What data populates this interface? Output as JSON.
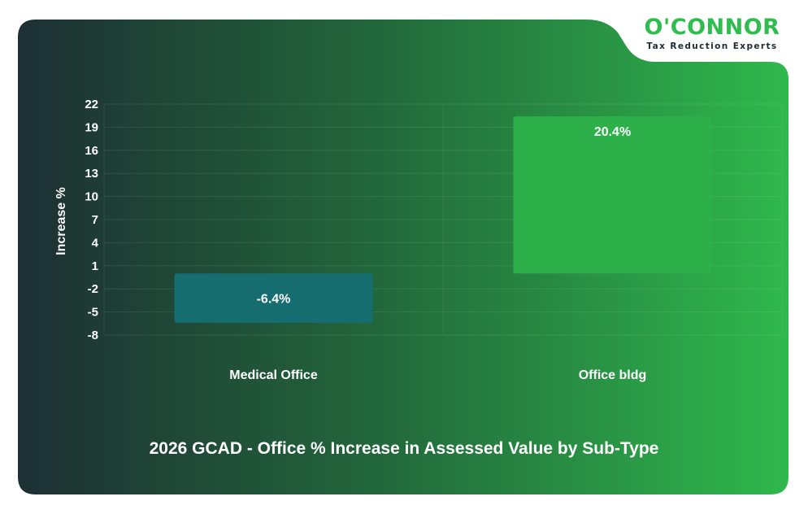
{
  "brand": {
    "name": "O'CONNOR",
    "tagline": "Tax Reduction Experts"
  },
  "colors": {
    "bg_dark": "#1d2f33",
    "bg_light": "#2fb84c",
    "bar_negative": "#156d70",
    "bar_positive": "#2db04a",
    "text": "#ffffff",
    "brand_green": "#2ebd4e"
  },
  "chart_data": {
    "type": "bar",
    "title": "2026 GCAD - Office % Increase in Assessed Value by Sub-Type",
    "xlabel": "",
    "ylabel": "Increase %",
    "categories": [
      "Medical Office",
      "Office bldg"
    ],
    "values": [
      -6.4,
      20.4
    ],
    "data_labels": [
      "-6.4%",
      "20.4%"
    ],
    "yticks": [
      22,
      19,
      16,
      13,
      10,
      7,
      4,
      1,
      -2,
      -5,
      -8
    ],
    "ylim": [
      -8,
      22
    ],
    "grid": true,
    "legend": "none"
  }
}
